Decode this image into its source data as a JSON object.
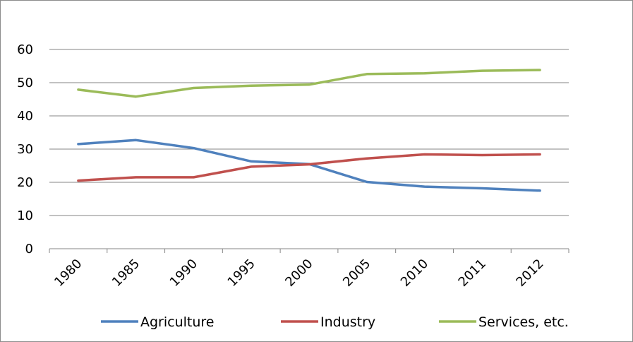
{
  "chart_data": {
    "type": "line",
    "title": "",
    "xlabel": "",
    "ylabel": "",
    "categories": [
      "1980",
      "1985",
      "1990",
      "1995",
      "2000",
      "2005",
      "2010",
      "2011",
      "2012"
    ],
    "ylim": [
      0,
      60
    ],
    "yticks": [
      "0",
      "10",
      "20",
      "30",
      "40",
      "50",
      "60"
    ],
    "grid": true,
    "legend_position": "bottom",
    "series": [
      {
        "name": "Agriculture",
        "color": "#4f81bd",
        "values": [
          31.5,
          32.7,
          30.3,
          26.3,
          25.5,
          20.1,
          18.7,
          18.2,
          17.5
        ]
      },
      {
        "name": "Industry",
        "color": "#c0504d",
        "values": [
          20.5,
          21.5,
          21.5,
          24.7,
          25.4,
          27.2,
          28.4,
          28.2,
          28.4
        ]
      },
      {
        "name": "Services, etc.",
        "color": "#9bbb59",
        "values": [
          47.9,
          45.8,
          48.4,
          49.1,
          49.4,
          52.6,
          52.8,
          53.6,
          53.8
        ]
      }
    ]
  }
}
